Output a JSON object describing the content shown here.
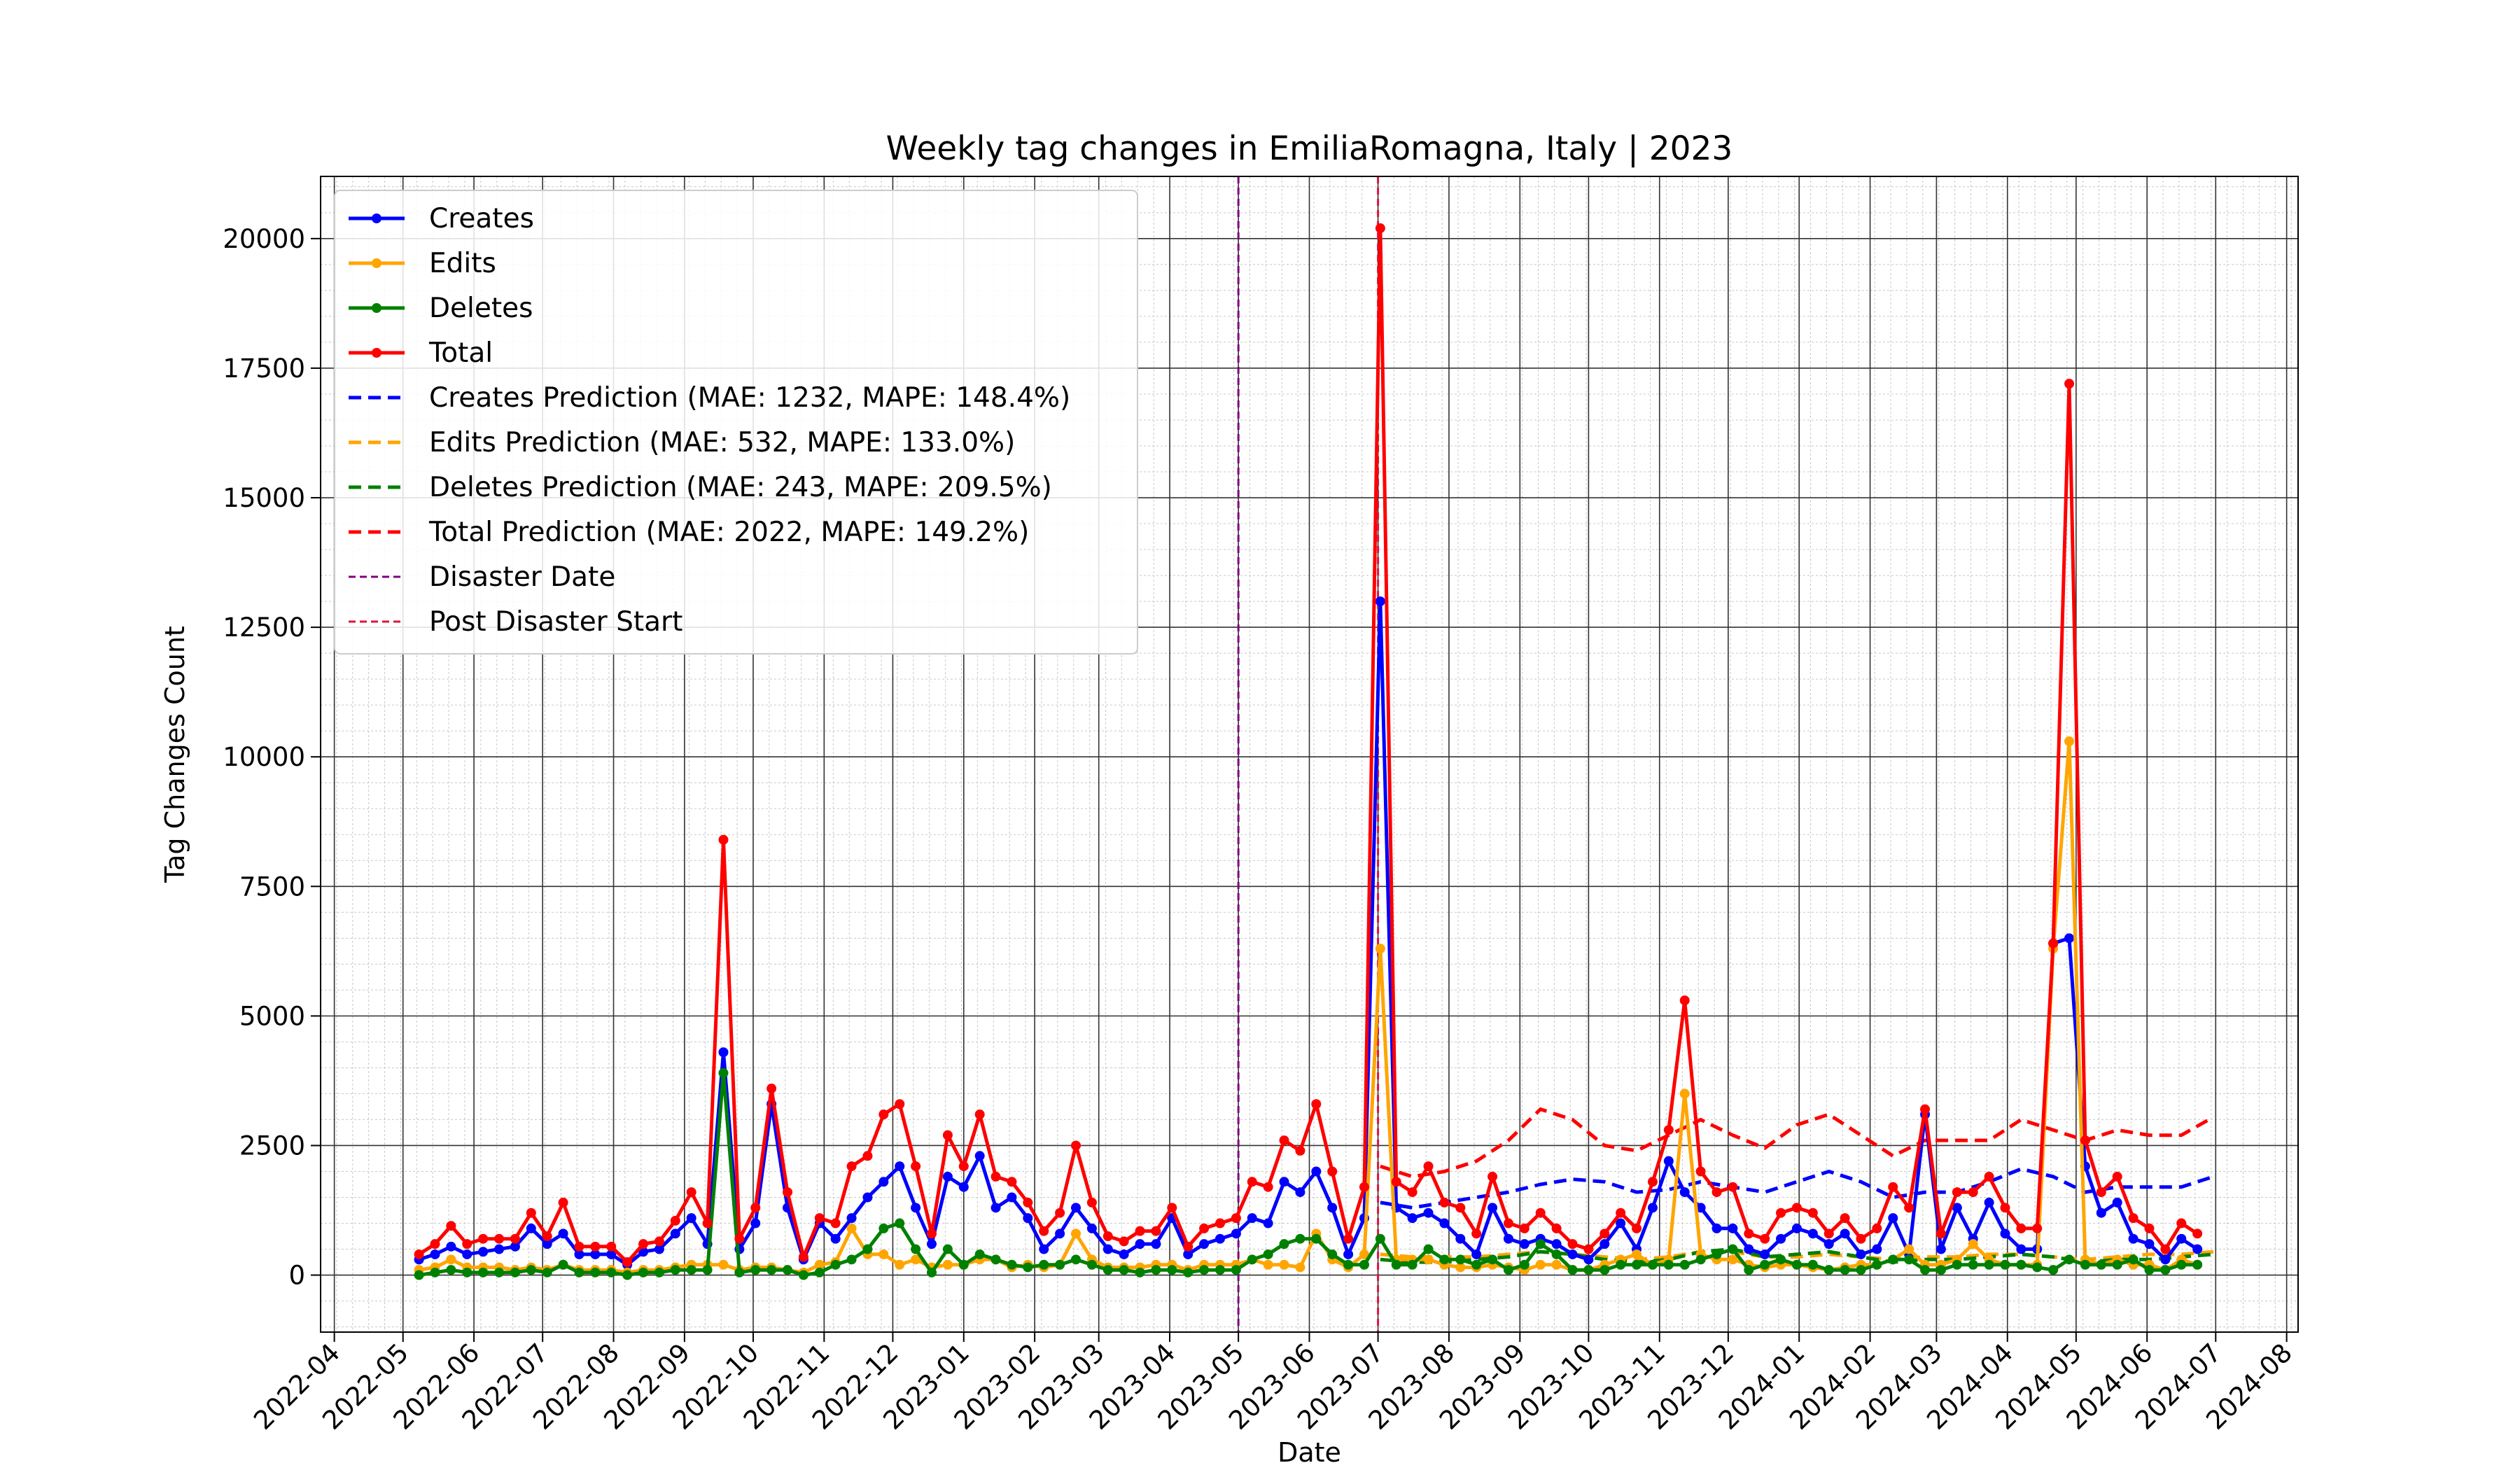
{
  "chart_data": {
    "type": "line",
    "title": "Weekly tag changes in EmiliaRomagna, Italy | 2023",
    "xlabel": "Date",
    "ylabel": "Tag Changes Count",
    "xlim": [
      "2022-03-26",
      "2024-08-06"
    ],
    "ylim": [
      -1100,
      21200
    ],
    "grid": true,
    "legend_position": "top-left",
    "x_ticks": [
      "2022-04",
      "2022-05",
      "2022-06",
      "2022-07",
      "2022-08",
      "2022-09",
      "2022-10",
      "2022-11",
      "2022-12",
      "2023-01",
      "2023-02",
      "2023-03",
      "2023-04",
      "2023-05",
      "2023-06",
      "2023-07",
      "2023-08",
      "2023-09",
      "2023-10",
      "2023-11",
      "2023-12",
      "2024-01",
      "2024-02",
      "2024-03",
      "2024-04",
      "2024-05",
      "2024-06",
      "2024-07",
      "2024-08"
    ],
    "y_ticks": [
      0,
      2500,
      5000,
      7500,
      10000,
      12500,
      15000,
      17500,
      20000
    ],
    "disaster_date": "2023-05-01",
    "post_disaster_start": "2023-07-01",
    "x": [
      "2022-05-08",
      "2022-05-15",
      "2022-05-22",
      "2022-05-29",
      "2022-06-05",
      "2022-06-12",
      "2022-06-19",
      "2022-06-26",
      "2022-07-03",
      "2022-07-10",
      "2022-07-17",
      "2022-07-24",
      "2022-07-31",
      "2022-08-07",
      "2022-08-14",
      "2022-08-21",
      "2022-08-28",
      "2022-09-04",
      "2022-09-11",
      "2022-09-18",
      "2022-09-25",
      "2022-10-02",
      "2022-10-09",
      "2022-10-16",
      "2022-10-23",
      "2022-10-30",
      "2022-11-06",
      "2022-11-13",
      "2022-11-20",
      "2022-11-27",
      "2022-12-04",
      "2022-12-11",
      "2022-12-18",
      "2022-12-25",
      "2023-01-01",
      "2023-01-08",
      "2023-01-15",
      "2023-01-22",
      "2023-01-29",
      "2023-02-05",
      "2023-02-12",
      "2023-02-19",
      "2023-02-26",
      "2023-03-05",
      "2023-03-12",
      "2023-03-19",
      "2023-03-26",
      "2023-04-02",
      "2023-04-09",
      "2023-04-16",
      "2023-04-23",
      "2023-04-30",
      "2023-05-07",
      "2023-05-14",
      "2023-05-21",
      "2023-05-28",
      "2023-06-04",
      "2023-06-11",
      "2023-06-18",
      "2023-06-25",
      "2023-07-02",
      "2023-07-09",
      "2023-07-16",
      "2023-07-23",
      "2023-07-30",
      "2023-08-06",
      "2023-08-13",
      "2023-08-20",
      "2023-08-27",
      "2023-09-03",
      "2023-09-10",
      "2023-09-17",
      "2023-09-24",
      "2023-10-01",
      "2023-10-08",
      "2023-10-15",
      "2023-10-22",
      "2023-10-29",
      "2023-11-05",
      "2023-11-12",
      "2023-11-19",
      "2023-11-26",
      "2023-12-03",
      "2023-12-10",
      "2023-12-17",
      "2023-12-24",
      "2023-12-31",
      "2024-01-07",
      "2024-01-14",
      "2024-01-21",
      "2024-01-28",
      "2024-02-04",
      "2024-02-11",
      "2024-02-18",
      "2024-02-25",
      "2024-03-03",
      "2024-03-10",
      "2024-03-17",
      "2024-03-24",
      "2024-03-31",
      "2024-04-07",
      "2024-04-14",
      "2024-04-21",
      "2024-04-28",
      "2024-05-05",
      "2024-05-12",
      "2024-05-19",
      "2024-05-26",
      "2024-06-02",
      "2024-06-09",
      "2024-06-16",
      "2024-06-23"
    ],
    "series": [
      {
        "name": "Creates",
        "color": "#0000ff",
        "style": "solid-dots",
        "values": [
          300,
          400,
          550,
          400,
          450,
          500,
          550,
          900,
          600,
          800,
          400,
          400,
          400,
          200,
          450,
          500,
          800,
          1100,
          600,
          4300,
          500,
          1000,
          3300,
          1300,
          300,
          1000,
          700,
          1100,
          1500,
          1800,
          2100,
          1300,
          600,
          1900,
          1700,
          2300,
          1300,
          1500,
          1100,
          500,
          800,
          1300,
          900,
          500,
          400,
          600,
          600,
          1100,
          400,
          600,
          700,
          800,
          1100,
          1000,
          1800,
          1600,
          2000,
          1300,
          400,
          1100,
          13000,
          1300,
          1100,
          1200,
          1000,
          700,
          400,
          1300,
          700,
          600,
          700,
          600,
          400,
          300,
          600,
          1000,
          500,
          1300,
          2200,
          1600,
          1300,
          900,
          900,
          500,
          400,
          700,
          900,
          800,
          600,
          800,
          400,
          500,
          1100,
          400,
          3100,
          500,
          1300,
          700,
          1400,
          800,
          500,
          500,
          6400,
          6500,
          2100,
          1200,
          1400,
          700,
          600,
          300,
          700,
          500
        ]
      },
      {
        "name": "Edits",
        "color": "#ffa500",
        "style": "solid-dots",
        "values": [
          100,
          150,
          300,
          150,
          150,
          150,
          100,
          150,
          100,
          200,
          100,
          100,
          100,
          50,
          100,
          100,
          150,
          200,
          200,
          200,
          100,
          150,
          150,
          100,
          50,
          200,
          250,
          900,
          400,
          400,
          200,
          300,
          150,
          200,
          200,
          300,
          300,
          150,
          200,
          150,
          200,
          800,
          300,
          150,
          150,
          150,
          200,
          200,
          100,
          200,
          200,
          200,
          300,
          200,
          200,
          150,
          800,
          300,
          150,
          400,
          6300,
          300,
          300,
          300,
          200,
          150,
          150,
          200,
          150,
          100,
          200,
          200,
          100,
          100,
          200,
          300,
          400,
          200,
          300,
          3500,
          400,
          300,
          300,
          200,
          150,
          200,
          200,
          150,
          100,
          150,
          200,
          200,
          300,
          500,
          200,
          200,
          300,
          600,
          300,
          200,
          200,
          200,
          6300,
          10300,
          300,
          200,
          300,
          200,
          200,
          100,
          300,
          200
        ]
      },
      {
        "name": "Deletes",
        "color": "#008000",
        "style": "solid-dots",
        "values": [
          0,
          50,
          100,
          50,
          50,
          50,
          50,
          100,
          50,
          200,
          50,
          50,
          50,
          0,
          50,
          50,
          100,
          100,
          100,
          3900,
          50,
          100,
          100,
          100,
          0,
          50,
          200,
          300,
          500,
          900,
          1000,
          500,
          50,
          500,
          200,
          400,
          300,
          200,
          150,
          200,
          200,
          300,
          200,
          100,
          100,
          50,
          100,
          100,
          50,
          100,
          100,
          100,
          300,
          400,
          600,
          700,
          700,
          400,
          200,
          200,
          700,
          200,
          200,
          500,
          300,
          300,
          200,
          300,
          100,
          200,
          600,
          400,
          100,
          100,
          100,
          200,
          200,
          200,
          200,
          200,
          300,
          400,
          500,
          100,
          200,
          300,
          200,
          200,
          100,
          100,
          100,
          200,
          300,
          300,
          100,
          100,
          200,
          200,
          200,
          200,
          200,
          150,
          100,
          300,
          200,
          200,
          200,
          300,
          100,
          100,
          200,
          200
        ]
      },
      {
        "name": "Total",
        "color": "#ff0000",
        "style": "solid-dots",
        "values": [
          400,
          600,
          950,
          600,
          700,
          700,
          700,
          1200,
          750,
          1400,
          550,
          550,
          550,
          250,
          600,
          650,
          1050,
          1600,
          1000,
          8400,
          700,
          1300,
          3600,
          1600,
          350,
          1100,
          1000,
          2100,
          2300,
          3100,
          3300,
          2100,
          800,
          2700,
          2100,
          3100,
          1900,
          1800,
          1400,
          850,
          1200,
          2500,
          1400,
          750,
          650,
          850,
          850,
          1300,
          550,
          900,
          1000,
          1100,
          1800,
          1700,
          2600,
          2400,
          3300,
          2000,
          700,
          1700,
          20200,
          1800,
          1600,
          2100,
          1400,
          1300,
          800,
          1900,
          1000,
          900,
          1200,
          900,
          600,
          500,
          800,
          1200,
          900,
          1800,
          2800,
          5300,
          2000,
          1600,
          1700,
          800,
          700,
          1200,
          1300,
          1200,
          800,
          1100,
          700,
          900,
          1700,
          1300,
          3200,
          800,
          1600,
          1600,
          1900,
          1300,
          900,
          900,
          6400,
          17200,
          2600,
          1600,
          1900,
          1100,
          900,
          500,
          1000,
          800
        ]
      },
      {
        "name": "Creates Prediction (MAE: 1232, MAPE: 148.4%)",
        "color": "#0000ff",
        "style": "dashed",
        "x": [
          "2023-07-02",
          "2023-07-16",
          "2023-07-30",
          "2023-08-13",
          "2023-08-27",
          "2023-09-10",
          "2023-09-24",
          "2023-10-08",
          "2023-10-22",
          "2023-11-05",
          "2023-11-19",
          "2023-12-03",
          "2023-12-17",
          "2023-12-31",
          "2024-01-14",
          "2024-01-28",
          "2024-02-11",
          "2024-02-25",
          "2024-03-10",
          "2024-03-24",
          "2024-04-07",
          "2024-04-21",
          "2024-05-05",
          "2024-05-19",
          "2024-06-02",
          "2024-06-16",
          "2024-06-30"
        ],
        "values": [
          1400,
          1300,
          1400,
          1500,
          1600,
          1750,
          1850,
          1800,
          1600,
          1650,
          1800,
          1700,
          1600,
          1800,
          2000,
          1800,
          1500,
          1600,
          1600,
          1800,
          2050,
          1900,
          1600,
          1700,
          1700,
          1700,
          1900
        ]
      },
      {
        "name": "Edits Prediction (MAE: 532, MAPE: 133.0%)",
        "color": "#ffa500",
        "style": "dashed",
        "x": [
          "2023-07-02",
          "2023-07-16",
          "2023-07-30",
          "2023-08-13",
          "2023-08-27",
          "2023-09-10",
          "2023-09-24",
          "2023-10-08",
          "2023-10-22",
          "2023-11-05",
          "2023-11-19",
          "2023-12-03",
          "2023-12-17",
          "2023-12-31",
          "2024-01-14",
          "2024-01-28",
          "2024-02-11",
          "2024-02-25",
          "2024-03-10",
          "2024-03-24",
          "2024-04-07",
          "2024-04-21",
          "2024-05-05",
          "2024-05-19",
          "2024-06-02",
          "2024-06-16",
          "2024-06-30"
        ],
        "values": [
          400,
          350,
          350,
          350,
          400,
          450,
          400,
          350,
          300,
          350,
          450,
          450,
          350,
          350,
          400,
          350,
          300,
          350,
          350,
          400,
          400,
          350,
          300,
          350,
          400,
          400,
          450
        ]
      },
      {
        "name": "Deletes Prediction (MAE: 243, MAPE: 209.5%)",
        "color": "#008000",
        "style": "dashed",
        "x": [
          "2023-07-02",
          "2023-07-16",
          "2023-07-30",
          "2023-08-13",
          "2023-08-27",
          "2023-09-10",
          "2023-09-24",
          "2023-10-08",
          "2023-10-22",
          "2023-11-05",
          "2023-11-19",
          "2023-12-03",
          "2023-12-17",
          "2023-12-31",
          "2024-01-14",
          "2024-01-28",
          "2024-02-11",
          "2024-02-25",
          "2024-03-10",
          "2024-03-24",
          "2024-04-07",
          "2024-04-21",
          "2024-05-05",
          "2024-05-19",
          "2024-06-02",
          "2024-06-16",
          "2024-06-30"
        ],
        "values": [
          300,
          250,
          250,
          300,
          350,
          450,
          400,
          300,
          250,
          300,
          450,
          500,
          350,
          400,
          450,
          350,
          250,
          300,
          300,
          350,
          400,
          350,
          250,
          300,
          300,
          350,
          400
        ]
      },
      {
        "name": "Total Prediction (MAE: 2022, MAPE: 149.2%)",
        "color": "#ff0000",
        "style": "dashed",
        "x": [
          "2023-07-02",
          "2023-07-16",
          "2023-07-30",
          "2023-08-13",
          "2023-08-27",
          "2023-09-10",
          "2023-09-24",
          "2023-10-08",
          "2023-10-22",
          "2023-11-05",
          "2023-11-19",
          "2023-12-03",
          "2023-12-17",
          "2023-12-31",
          "2024-01-14",
          "2024-01-28",
          "2024-02-11",
          "2024-02-25",
          "2024-03-10",
          "2024-03-24",
          "2024-04-07",
          "2024-04-21",
          "2024-05-05",
          "2024-05-19",
          "2024-06-02",
          "2024-06-16",
          "2024-06-30"
        ],
        "values": [
          2100,
          1900,
          2000,
          2200,
          2600,
          3200,
          3000,
          2500,
          2400,
          2700,
          3000,
          2700,
          2450,
          2900,
          3100,
          2700,
          2300,
          2600,
          2600,
          2600,
          3000,
          2800,
          2600,
          2800,
          2700,
          2700,
          3050
        ]
      }
    ],
    "reference_lines": [
      {
        "name": "Disaster Date",
        "color": "#800080",
        "style": "dashed",
        "x": "2023-05-01"
      },
      {
        "name": "Post Disaster Start",
        "color": "#dc143c",
        "style": "dashed",
        "x": "2023-07-01"
      }
    ]
  }
}
